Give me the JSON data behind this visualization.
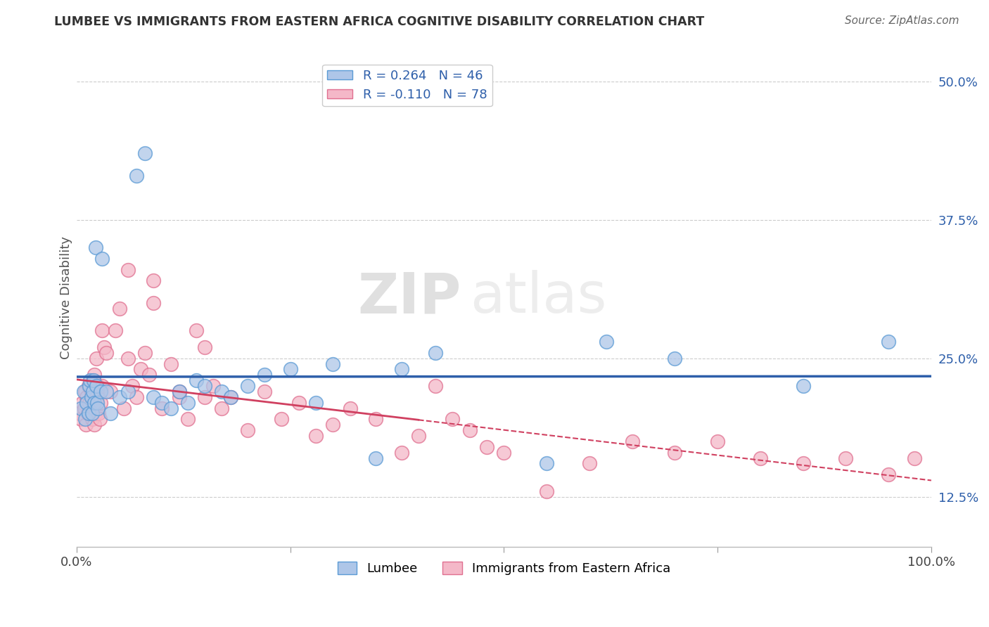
{
  "title": "LUMBEE VS IMMIGRANTS FROM EASTERN AFRICA COGNITIVE DISABILITY CORRELATION CHART",
  "source": "Source: ZipAtlas.com",
  "ylabel": "Cognitive Disability",
  "xlim": [
    0.0,
    100.0
  ],
  "ylim": [
    8.0,
    53.0
  ],
  "yticks": [
    12.5,
    25.0,
    37.5,
    50.0
  ],
  "background_color": "#ffffff",
  "grid_color": "#cccccc",
  "lumbee_color": "#aec6e8",
  "lumbee_edge_color": "#5b9bd5",
  "immigrant_color": "#f4b8c8",
  "immigrant_edge_color": "#e07090",
  "lumbee_line_color": "#2e5faa",
  "immigrant_line_color": "#d04060",
  "R_lumbee": 0.264,
  "N_lumbee": 46,
  "R_immigrant": -0.11,
  "N_immigrant": 78,
  "legend_label_lumbee": "Lumbee",
  "legend_label_immigrant": "Immigrants from Eastern Africa",
  "watermark_zip": "ZIP",
  "watermark_atlas": "atlas",
  "lumbee_x": [
    0.5,
    0.8,
    1.0,
    1.2,
    1.4,
    1.5,
    1.6,
    1.7,
    1.8,
    1.9,
    2.0,
    2.1,
    2.2,
    2.3,
    2.4,
    2.5,
    2.8,
    3.0,
    3.5,
    4.0,
    5.0,
    6.0,
    7.0,
    8.0,
    9.0,
    10.0,
    11.0,
    12.0,
    13.0,
    14.0,
    15.0,
    17.0,
    18.0,
    20.0,
    22.0,
    25.0,
    28.0,
    30.0,
    35.0,
    38.0,
    42.0,
    55.0,
    62.0,
    70.0,
    85.0,
    95.0
  ],
  "lumbee_y": [
    20.5,
    22.0,
    19.5,
    21.0,
    20.0,
    22.5,
    23.0,
    21.5,
    20.0,
    22.0,
    23.0,
    21.0,
    35.0,
    22.5,
    21.0,
    20.5,
    22.0,
    34.0,
    22.0,
    20.0,
    21.5,
    22.0,
    41.5,
    43.5,
    21.5,
    21.0,
    20.5,
    22.0,
    21.0,
    23.0,
    22.5,
    22.0,
    21.5,
    22.5,
    23.5,
    24.0,
    21.0,
    24.5,
    16.0,
    24.0,
    25.5,
    15.5,
    26.5,
    25.0,
    22.5,
    26.5
  ],
  "immigrant_x": [
    0.3,
    0.5,
    0.7,
    0.9,
    1.0,
    1.1,
    1.2,
    1.3,
    1.4,
    1.5,
    1.6,
    1.7,
    1.8,
    1.9,
    2.0,
    2.0,
    2.1,
    2.1,
    2.2,
    2.3,
    2.4,
    2.5,
    2.6,
    2.7,
    2.8,
    3.0,
    3.0,
    3.2,
    3.5,
    4.0,
    4.5,
    5.0,
    5.5,
    6.0,
    6.5,
    7.0,
    7.5,
    8.0,
    8.5,
    9.0,
    10.0,
    11.0,
    12.0,
    13.0,
    14.0,
    15.0,
    16.0,
    17.0,
    18.0,
    20.0,
    22.0,
    24.0,
    26.0,
    28.0,
    30.0,
    32.0,
    35.0,
    38.0,
    40.0,
    42.0,
    44.0,
    46.0,
    48.0,
    50.0,
    55.0,
    60.0,
    65.0,
    70.0,
    75.0,
    80.0,
    85.0,
    90.0,
    95.0,
    98.0,
    6.0,
    9.0,
    12.0,
    15.0
  ],
  "immigrant_y": [
    20.0,
    19.5,
    21.0,
    20.5,
    22.0,
    19.0,
    21.5,
    20.0,
    22.5,
    21.0,
    20.0,
    22.0,
    19.5,
    23.0,
    20.5,
    21.5,
    19.0,
    23.5,
    20.0,
    25.0,
    21.5,
    22.5,
    20.0,
    19.5,
    21.0,
    27.5,
    22.5,
    26.0,
    25.5,
    22.0,
    27.5,
    29.5,
    20.5,
    25.0,
    22.5,
    21.5,
    24.0,
    25.5,
    23.5,
    32.0,
    20.5,
    24.5,
    21.5,
    19.5,
    27.5,
    21.5,
    22.5,
    20.5,
    21.5,
    18.5,
    22.0,
    19.5,
    21.0,
    18.0,
    19.0,
    20.5,
    19.5,
    16.5,
    18.0,
    22.5,
    19.5,
    18.5,
    17.0,
    16.5,
    13.0,
    15.5,
    17.5,
    16.5,
    17.5,
    16.0,
    15.5,
    16.0,
    14.5,
    16.0,
    33.0,
    30.0,
    22.0,
    26.0
  ]
}
